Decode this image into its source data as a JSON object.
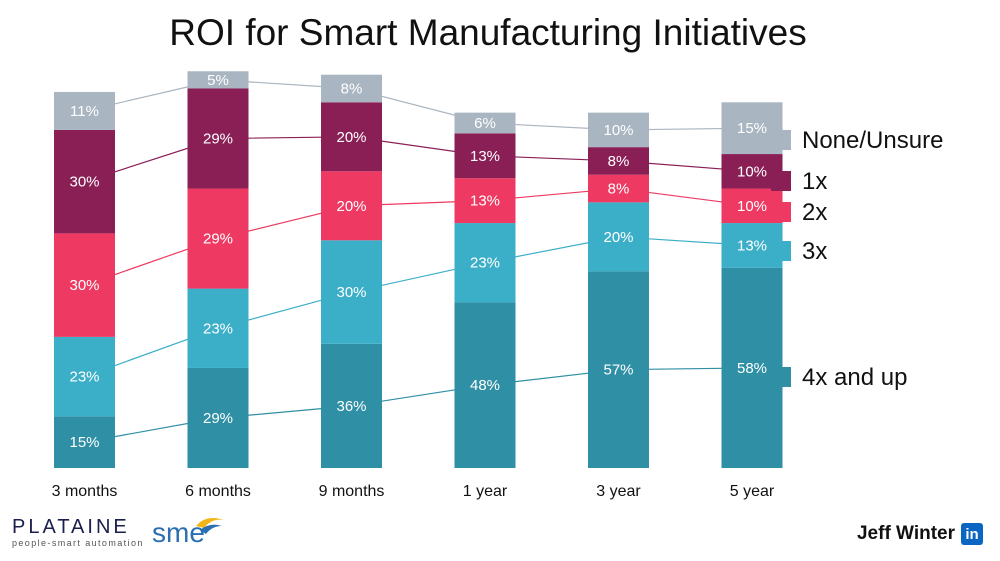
{
  "chart_data": {
    "type": "bar",
    "stacked": true,
    "title": "ROI for Smart Manufacturing Initiatives",
    "xlabel": "",
    "ylabel": "",
    "categories": [
      "3 months",
      "6 months",
      "9 months",
      "1 year",
      "3 year",
      "5 year"
    ],
    "series": [
      {
        "name": "4x and up",
        "values": [
          15,
          29,
          36,
          48,
          57,
          58
        ],
        "color": "#2f8fa4"
      },
      {
        "name": "3x",
        "values": [
          23,
          23,
          30,
          23,
          20,
          13
        ],
        "color": "#3cafc8"
      },
      {
        "name": "2x",
        "values": [
          30,
          29,
          20,
          13,
          8,
          10
        ],
        "color": "#ee3a62"
      },
      {
        "name": "1x",
        "values": [
          30,
          29,
          20,
          13,
          8,
          10
        ],
        "color": "#8a1f56"
      },
      {
        "name": "None/Unsure",
        "values": [
          11,
          5,
          8,
          6,
          10,
          15
        ],
        "color": "#a9b5c0"
      }
    ],
    "legend_order": [
      "None/Unsure",
      "1x",
      "2x",
      "3x",
      "4x and up"
    ],
    "legend_position": "right",
    "grid": false,
    "data_labels_suffix": "%"
  },
  "footer": {
    "platine_name": "PLATAINE",
    "platine_tagline": "people-smart automation",
    "sme_name": "sme",
    "author": "Jeff Winter",
    "linkedin_glyph": "in"
  }
}
